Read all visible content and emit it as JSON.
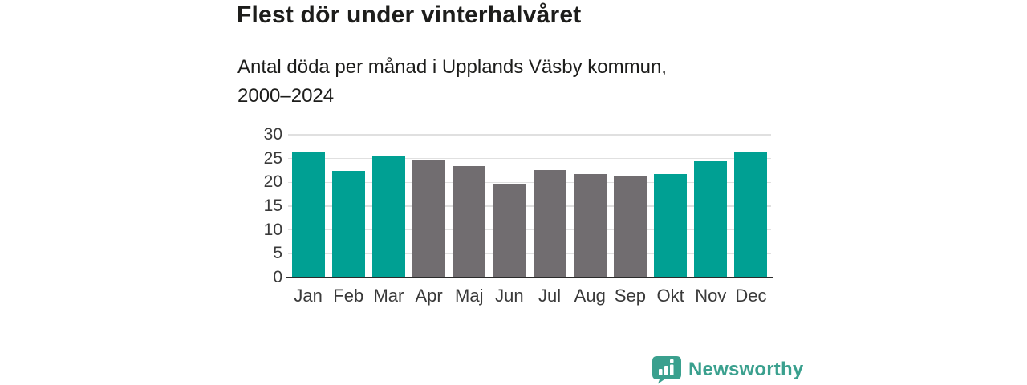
{
  "header": {
    "title": "Flest dör under vinterhalvåret",
    "subtitle_line1": "Antal döda per månad i Upplands Väsby kommun,",
    "subtitle_line2": "2000–2024"
  },
  "footer": {
    "brand_name": "Newsworthy",
    "logo_icon": "newsworthy-bubble-bar-chart-icon",
    "brand_color": "#3aa08e"
  },
  "colors": {
    "winter_bar": "#00a093",
    "summer_bar": "#716d70",
    "gridline": "#e0e0e0",
    "axis_line": "#2b2b2b",
    "heading_text": "#1d1d1b",
    "tick_text": "#3a3a3a"
  },
  "chart_data": {
    "type": "bar",
    "title": "Flest dör under vinterhalvåret",
    "subtitle": "Antal döda per månad i Upplands Väsby kommun, 2000–2024",
    "categories": [
      "Jan",
      "Feb",
      "Mar",
      "Apr",
      "Maj",
      "Jun",
      "Jul",
      "Aug",
      "Sep",
      "Okt",
      "Nov",
      "Dec"
    ],
    "values": [
      26.2,
      22.3,
      25.2,
      24.5,
      23.2,
      19.4,
      22.5,
      21.5,
      21.0,
      21.6,
      24.2,
      26.3
    ],
    "seasons": [
      "winter",
      "winter",
      "winter",
      "summer",
      "summer",
      "summer",
      "summer",
      "summer",
      "summer",
      "winter",
      "winter",
      "winter"
    ],
    "palette": {
      "winter": "#00a093",
      "summer": "#716d70"
    },
    "xlabel": "",
    "ylabel": "",
    "ylim": [
      0,
      30
    ],
    "yticks": [
      0,
      5,
      10,
      15,
      20,
      25,
      30
    ],
    "grid": "horizontal",
    "legend": "none"
  }
}
